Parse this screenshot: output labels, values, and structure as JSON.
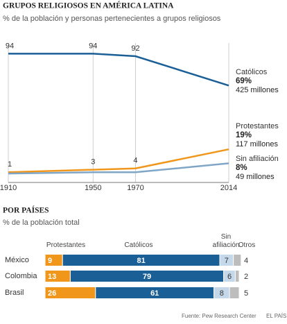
{
  "chart_data": [
    {
      "type": "line",
      "title": "GRUPOS RELIGIOSOS EN AMÉRICA LATINA",
      "subtitle": "% de la población y personas pertenecientes a grupos religiosos",
      "x": [
        1910,
        1950,
        1970,
        2014
      ],
      "xlim": [
        1910,
        2014
      ],
      "xticks": [
        1910,
        1950,
        1970,
        2014
      ],
      "ylim": [
        -7,
        98
      ],
      "grid": true,
      "series": [
        {
          "name": "Católicos",
          "color": "#1b5f97",
          "values": [
            94,
            94,
            92,
            69
          ],
          "value_labels": [
            "94",
            "94",
            "92",
            "69%"
          ],
          "members": "425 millones"
        },
        {
          "name": "Protestantes",
          "color": "#f0961b",
          "values": [
            1,
            3,
            4,
            19
          ],
          "value_labels": [
            "1",
            "3",
            "4",
            "19%"
          ],
          "members": "117 millones"
        },
        {
          "name": "Sin afiliación",
          "color": "#7fa6c6",
          "values": [
            0,
            1,
            1,
            8
          ],
          "value_labels": [
            null,
            null,
            null,
            "8%"
          ],
          "members": "49 millones"
        }
      ]
    },
    {
      "type": "hbar_stacked",
      "title": "POR PAÍSES",
      "subtitle": "% de la población total",
      "categories": [
        "México",
        "Colombia",
        "Brasil"
      ],
      "xlim": [
        0,
        100
      ],
      "series": [
        {
          "name": "Protestantes",
          "color": "#f0961b",
          "values": [
            9,
            13,
            26
          ]
        },
        {
          "name": "Católicos",
          "color": "#1b5f97",
          "values": [
            81,
            79,
            61
          ]
        },
        {
          "name": "Sin afiliación",
          "color": "#c5d8ea",
          "values": [
            7,
            6,
            8
          ]
        },
        {
          "name": "Otros",
          "color": "#bdbdbd",
          "values": [
            4,
            2,
            5
          ]
        }
      ],
      "source": "Fuente: Pew Research Center",
      "credit": "EL PAÍS"
    }
  ]
}
